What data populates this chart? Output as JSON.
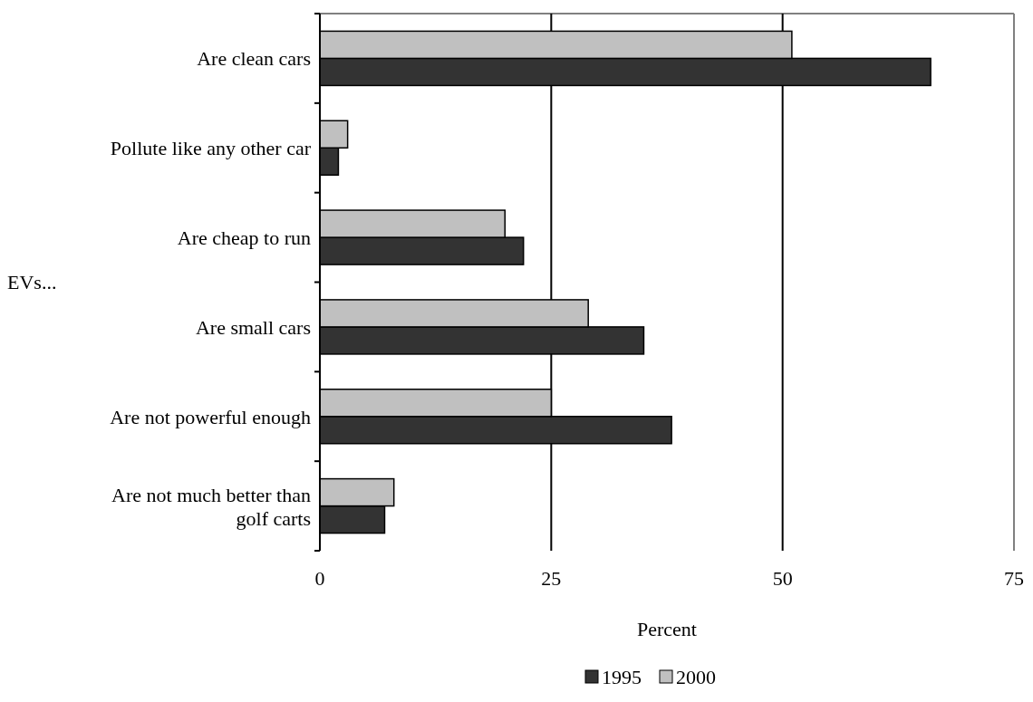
{
  "chart_data": {
    "type": "bar",
    "orientation": "horizontal",
    "categories": [
      "Are clean cars",
      "Pollute like any other car",
      "Are cheap to run",
      "Are small cars",
      "Are not powerful enough",
      "Are not much better than golf carts"
    ],
    "series": [
      {
        "name": "1995",
        "color": "#333333",
        "values": [
          66,
          2,
          22,
          35,
          38,
          7
        ]
      },
      {
        "name": "2000",
        "color": "#c0c0c0",
        "values": [
          51,
          3,
          20,
          29,
          25,
          8
        ]
      }
    ],
    "xlim": [
      0,
      75
    ],
    "xticks": [
      0,
      25,
      50,
      75
    ],
    "grid": "x",
    "xlabel": "Percent",
    "ylabel": "EVs...",
    "legend": "bottom"
  }
}
